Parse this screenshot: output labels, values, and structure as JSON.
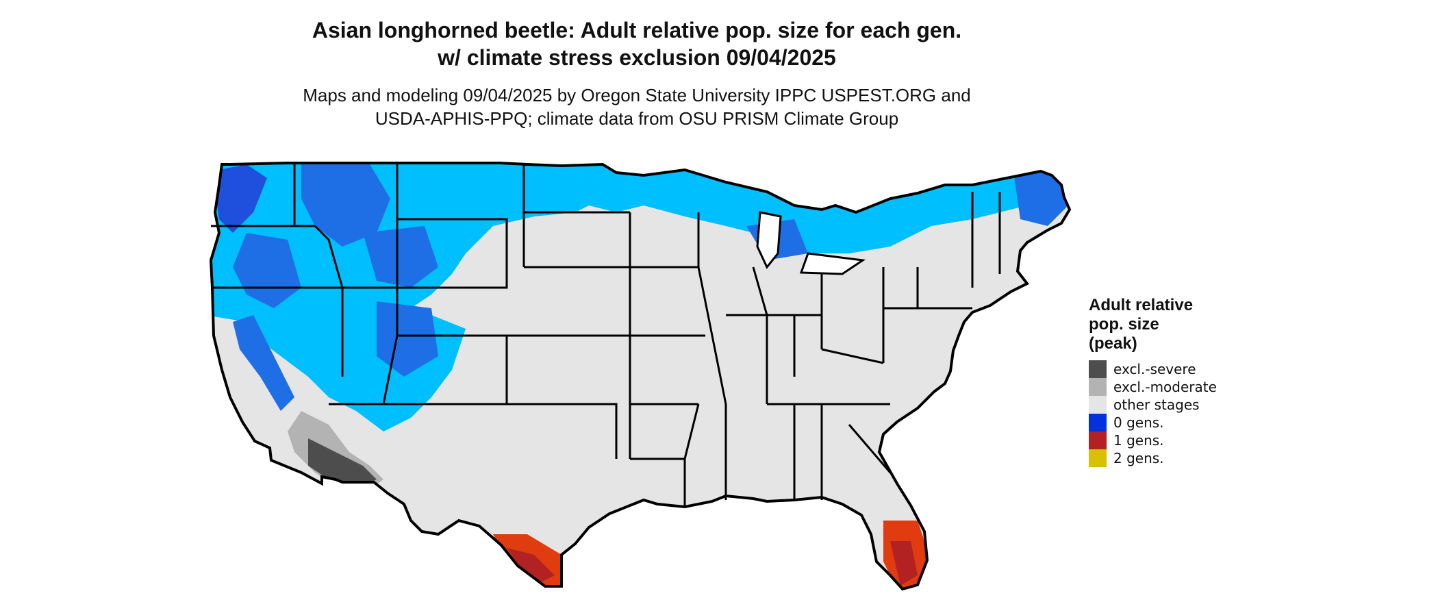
{
  "title": {
    "line1": "Asian longhorned beetle: Adult relative pop. size for each gen.",
    "line2": "w/ climate stress exclusion 09/04/2025"
  },
  "subtitle": {
    "line1": "Maps and modeling 09/04/2025 by Oregon State University IPPC USPEST.ORG and",
    "line2": "USDA-APHIS-PPQ; climate data from OSU PRISM Climate Group"
  },
  "map": {
    "region": "contiguous-united-states",
    "background_color": "#e5e5e5",
    "border_color": "#000000",
    "palette": {
      "light_blue": "#00bfff",
      "blue": "#1e6fe6",
      "dark_blue": "#0033cc",
      "red": "#e03c10",
      "dark_red": "#b22222",
      "dark_gray": "#4d4d4d",
      "light_gray": "#b3b3b3"
    }
  },
  "legend": {
    "title_lines": [
      "Adult relative",
      "pop. size",
      "(peak)"
    ],
    "items": [
      {
        "label": "excl.-severe",
        "color": "#4d4d4d"
      },
      {
        "label": "excl.-moderate",
        "color": "#b3b3b3"
      },
      {
        "label": "other stages",
        "color": "#e5e5e5"
      },
      {
        "label": "0 gens.",
        "color": "#0033dd"
      },
      {
        "label": "1 gens.",
        "color": "#b22222"
      },
      {
        "label": "2 gens.",
        "color": "#d9c000"
      }
    ]
  }
}
